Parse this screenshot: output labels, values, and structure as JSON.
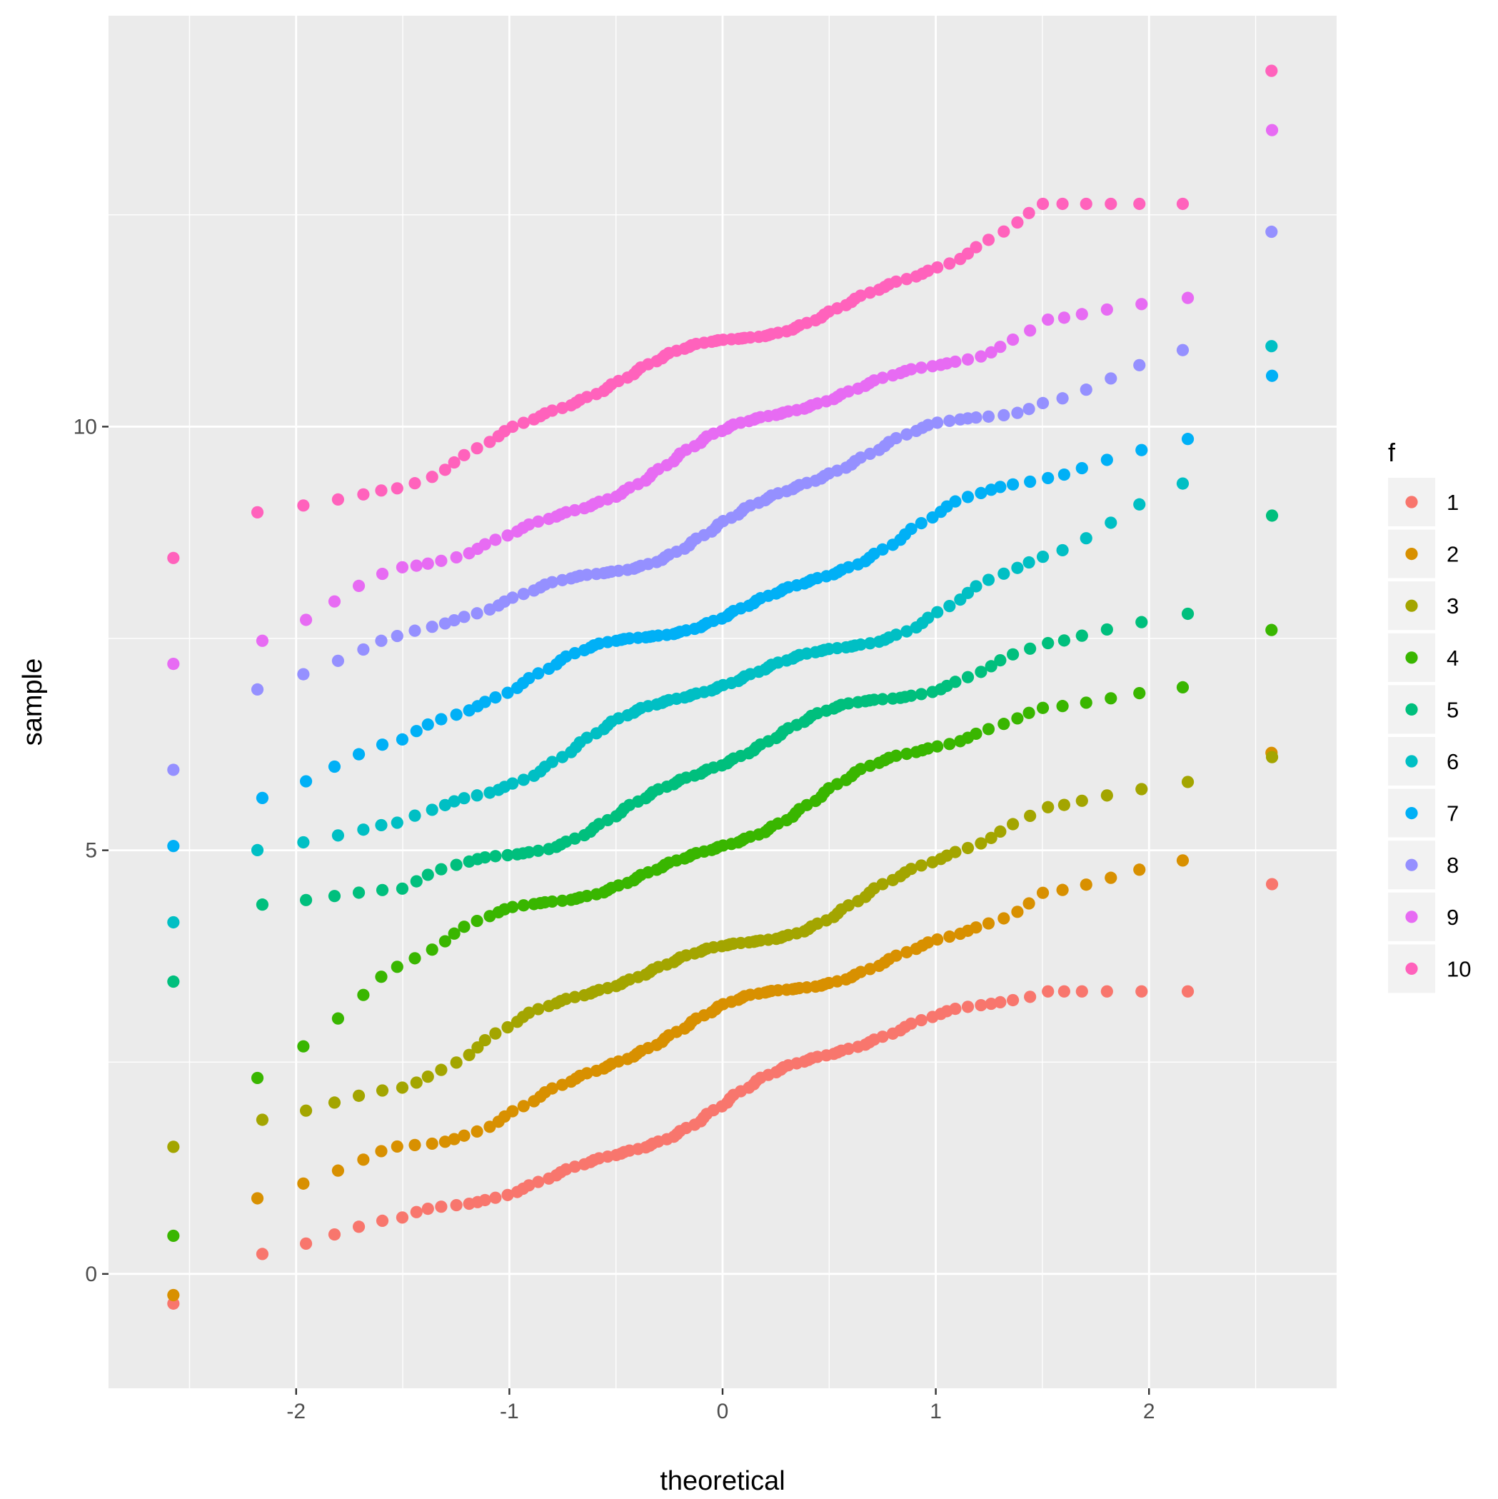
{
  "chart_data": {
    "type": "scatter",
    "xlabel": "theoretical",
    "ylabel": "sample",
    "xlim": [
      -2.88,
      2.88
    ],
    "ylim": [
      -1.35,
      14.85
    ],
    "x_ticks": [
      -2,
      -1,
      0,
      1,
      2
    ],
    "x_tick_labels": [
      "-2",
      "-1",
      "0",
      "1",
      "2"
    ],
    "y_ticks": [
      0,
      5,
      10
    ],
    "y_tick_labels": [
      "0",
      "5",
      "10"
    ],
    "grid": true,
    "legend": {
      "title": "f",
      "position": "right"
    },
    "points_per_series": 100,
    "series": [
      {
        "name": "1",
        "color": "#F8766D",
        "lo": -0.35,
        "hi": 4.6,
        "offset": 2.0,
        "tail_min": 0.1,
        "tail_max": 2.8
      },
      {
        "name": "2",
        "color": "#D89000",
        "lo": -0.25,
        "hi": 6.15,
        "offset": 3.0,
        "tail_min": 0.7,
        "tail_max": 5.0
      },
      {
        "name": "3",
        "color": "#A3A500",
        "lo": 1.5,
        "hi": 6.1,
        "offset": 3.85,
        "tail_min": 1.7,
        "tail_max": 5.9
      },
      {
        "name": "4",
        "color": "#39B600",
        "lo": 0.45,
        "hi": 7.6,
        "offset": 5.15,
        "tail_min": 1.9,
        "tail_max": 7.0
      },
      {
        "name": "5",
        "color": "#00BF7D",
        "lo": 3.45,
        "hi": 8.95,
        "offset": 6.0,
        "tail_min": 4.3,
        "tail_max": 7.9
      },
      {
        "name": "6",
        "color": "#00BFC4",
        "lo": 4.15,
        "hi": 10.95,
        "offset": 6.9,
        "tail_min": 4.9,
        "tail_max": 9.6
      },
      {
        "name": "7",
        "color": "#00B0F6",
        "lo": 5.05,
        "hi": 10.6,
        "offset": 7.85,
        "tail_min": 5.4,
        "tail_max": 10.0
      },
      {
        "name": "8",
        "color": "#9590FF",
        "lo": 5.95,
        "hi": 12.3,
        "offset": 8.9,
        "tail_min": 6.7,
        "tail_max": 11.1
      },
      {
        "name": "9",
        "color": "#E76BF3",
        "lo": 7.2,
        "hi": 13.5,
        "offset": 9.8,
        "tail_min": 7.2,
        "tail_max": 11.6
      },
      {
        "name": "10",
        "color": "#FF62BC",
        "lo": 8.45,
        "hi": 14.2,
        "offset": 10.95,
        "tail_min": 8.9,
        "tail_max": 12.6
      }
    ]
  }
}
